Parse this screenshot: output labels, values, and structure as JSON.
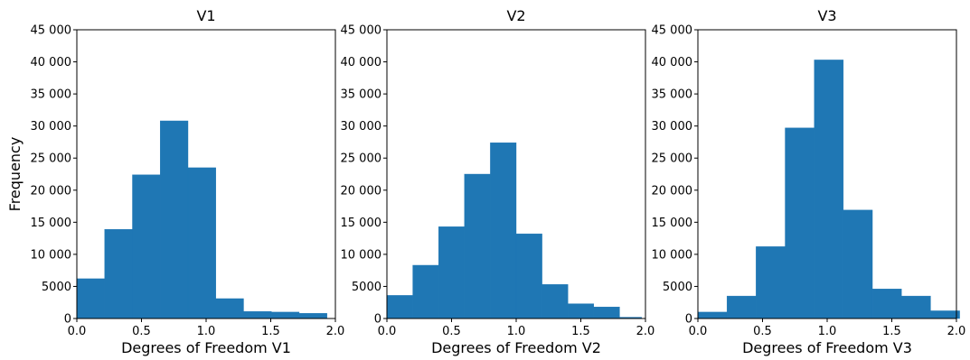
{
  "chart_data": [
    {
      "type": "bar",
      "title": "V1",
      "xlabel": "Degrees of Freedom V1",
      "ylabel": "Frequency",
      "xlim": [
        0.0,
        2.0
      ],
      "ylim": [
        0,
        45000
      ],
      "xticks": [
        "0.0",
        "0.5",
        "1.0",
        "1.5",
        "2.0"
      ],
      "yticks": [
        "0",
        "5000",
        "10 000",
        "15 000",
        "20 000",
        "25 000",
        "30 000",
        "35 000",
        "40 000",
        "45 000"
      ],
      "color": "#1f77b4",
      "bin_edges": [
        0.0,
        0.215,
        0.43,
        0.645,
        0.86,
        1.075,
        1.29,
        1.505,
        1.72,
        1.935
      ],
      "values": [
        6200,
        13900,
        22400,
        30800,
        23500,
        3100,
        1100,
        1000,
        800
      ]
    },
    {
      "type": "bar",
      "title": "V2",
      "xlabel": "Degrees of Freedom V2",
      "ylabel": "",
      "xlim": [
        0.0,
        2.0
      ],
      "ylim": [
        0,
        45000
      ],
      "xticks": [
        "0.0",
        "0.5",
        "1.0",
        "1.5",
        "2.0"
      ],
      "yticks": [
        "0",
        "5000",
        "10 000",
        "15 000",
        "20 000",
        "25 000",
        "30 000",
        "35 000",
        "40 000",
        "45 000"
      ],
      "color": "#1f77b4",
      "bin_edges": [
        0.0,
        0.2,
        0.4,
        0.6,
        0.8,
        1.0,
        1.2,
        1.4,
        1.6,
        1.8,
        1.97
      ],
      "values": [
        3600,
        8300,
        14300,
        22500,
        27400,
        13200,
        5300,
        2300,
        1800,
        200
      ]
    },
    {
      "type": "bar",
      "title": "V3",
      "xlabel": "Degrees of Freedom V3",
      "ylabel": "",
      "xlim": [
        0.0,
        2.0
      ],
      "ylim": [
        0,
        45000
      ],
      "xticks": [
        "0.0",
        "0.5",
        "1.0",
        "1.5",
        "2.0"
      ],
      "yticks": [
        "0",
        "5000",
        "10 000",
        "15 000",
        "20 000",
        "25 000",
        "30 000",
        "35 000",
        "40 000",
        "45 000"
      ],
      "color": "#1f77b4",
      "bin_edges": [
        0.0,
        0.225,
        0.45,
        0.675,
        0.9,
        1.125,
        1.35,
        1.575,
        1.8,
        2.025
      ],
      "values": [
        1000,
        3500,
        11200,
        29700,
        40300,
        16900,
        4600,
        3500,
        1200
      ]
    }
  ]
}
